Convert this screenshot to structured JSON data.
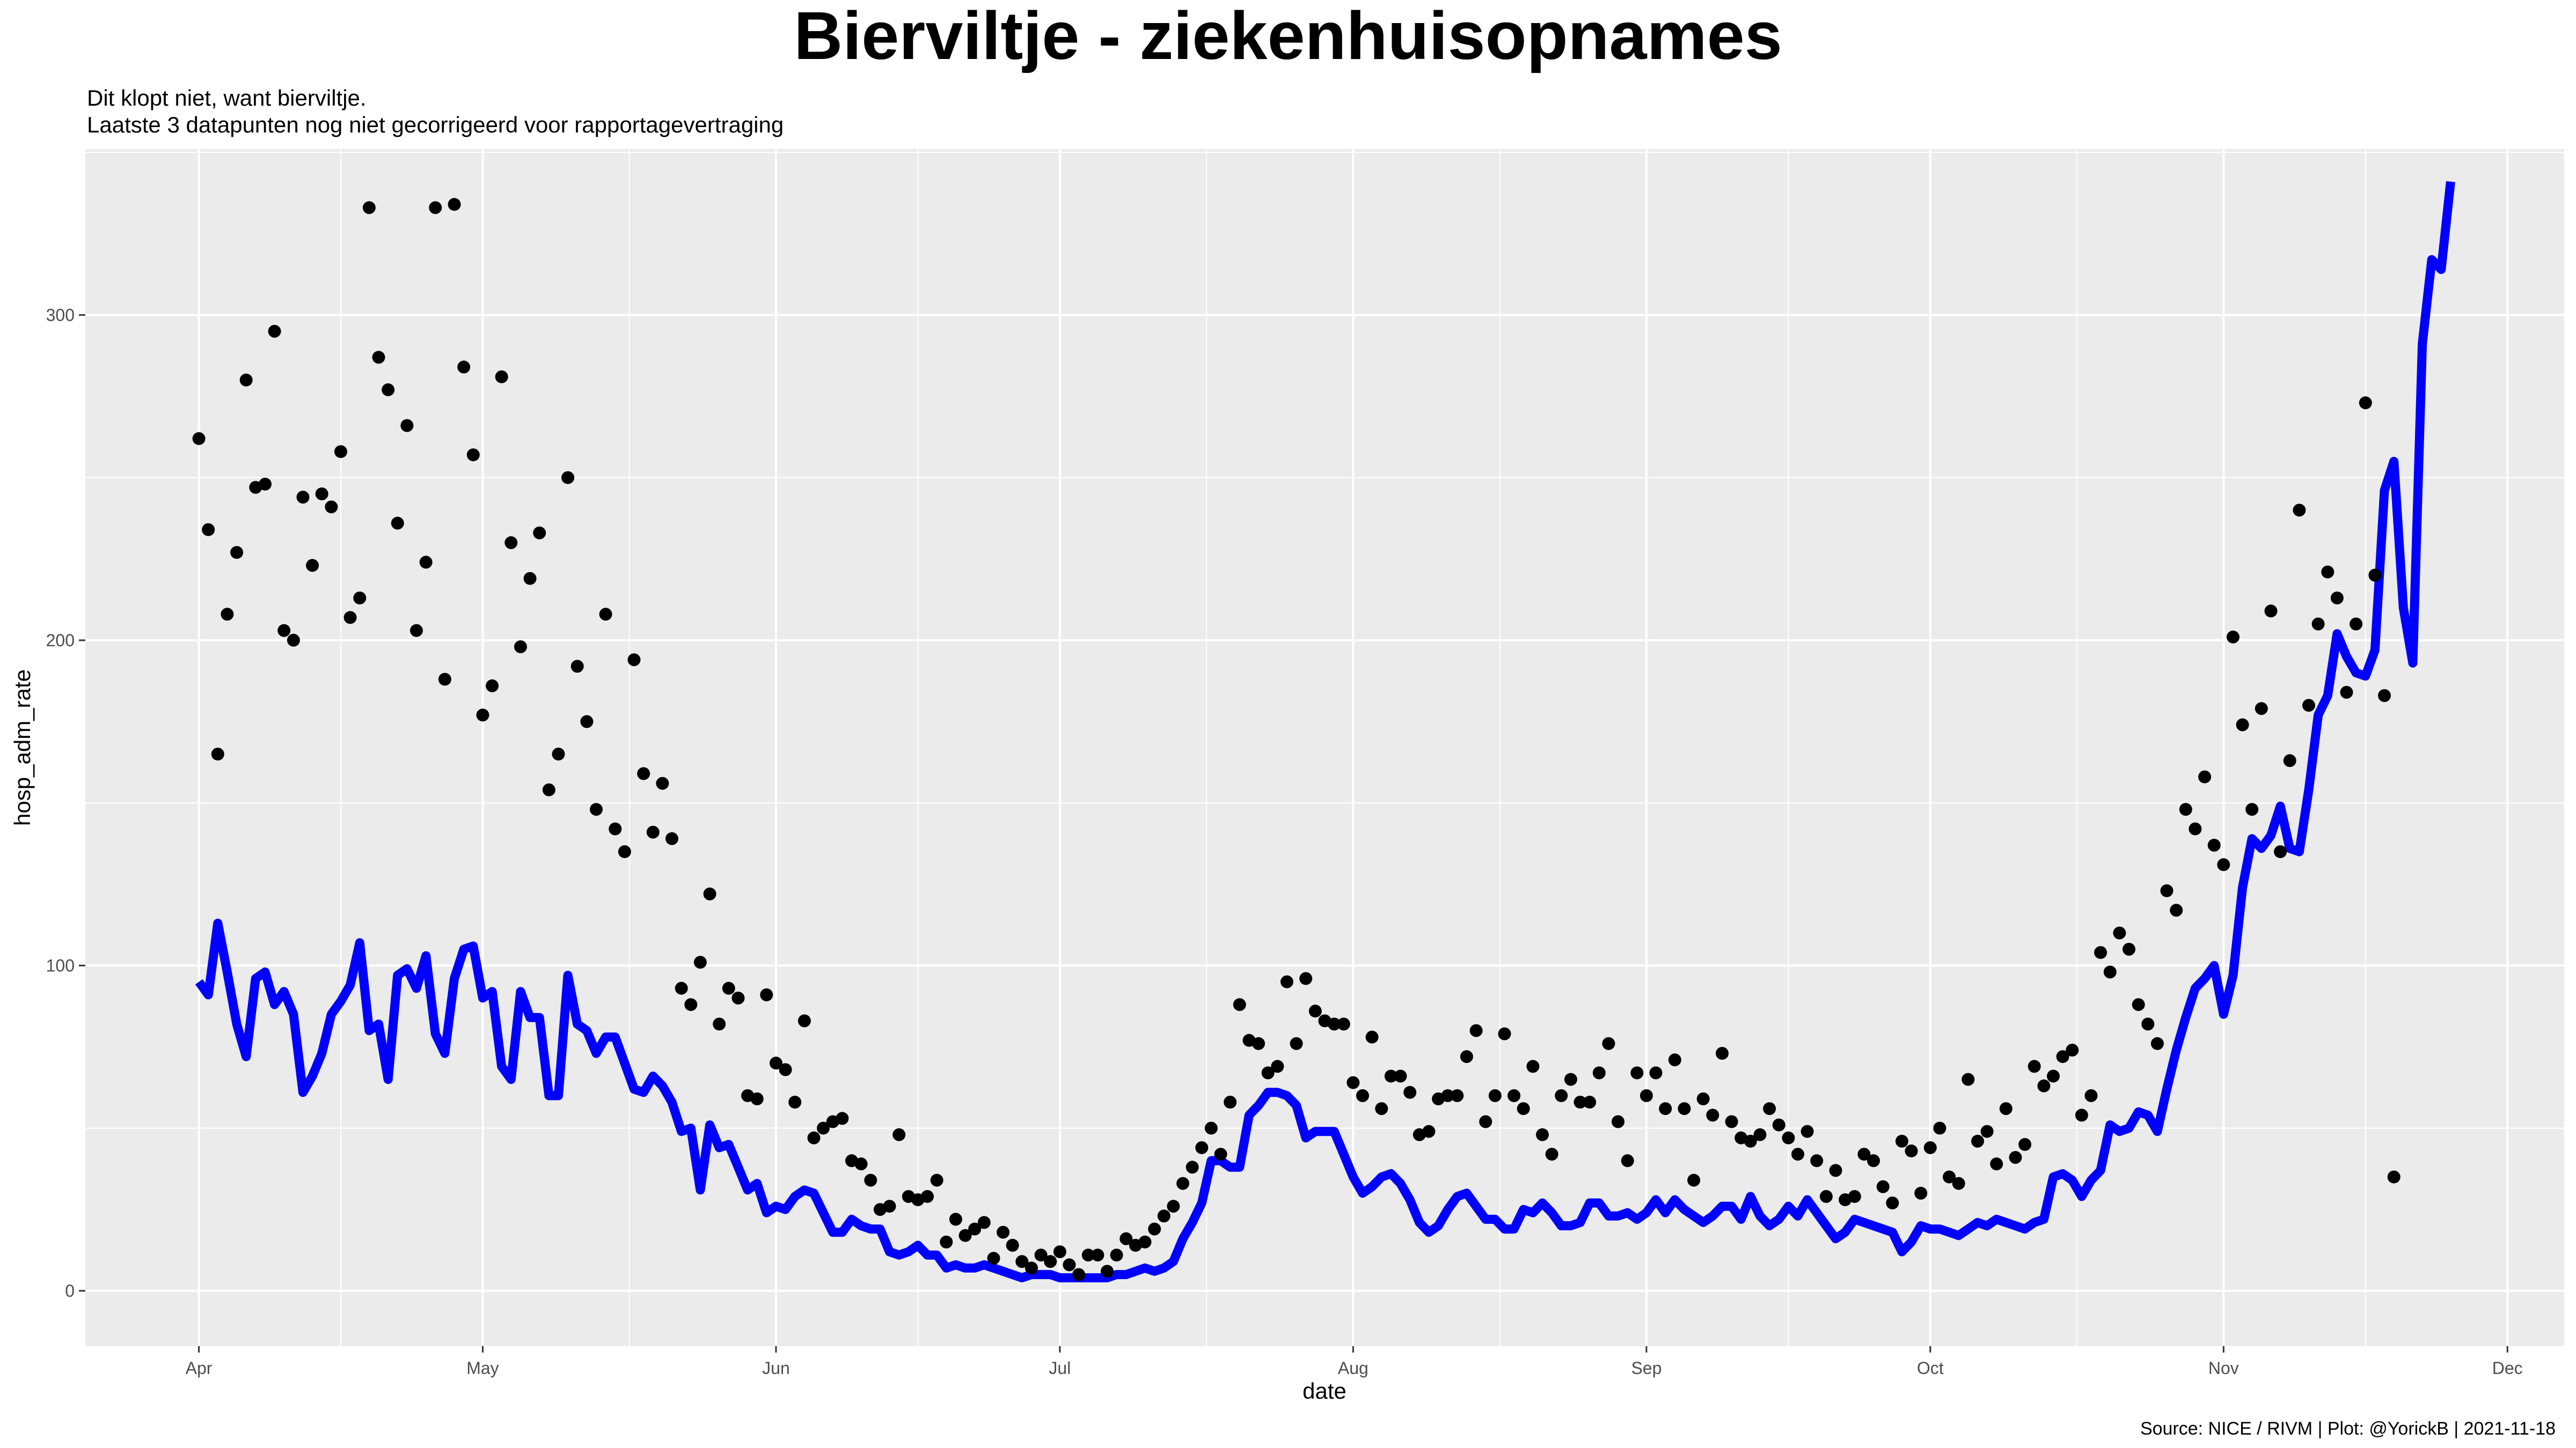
{
  "chart_data": {
    "type": "scatter",
    "title": "Bierviltje - ziekenhuisopnames",
    "subtitle_lines": [
      "Dit klopt niet, want bierviltje.",
      "Laatste 3 datapunten nog niet gecorrigeerd voor rapportagevertraging"
    ],
    "xlabel": "date",
    "ylabel": "hosp_adm_rate",
    "caption": "Source: NICE / RIVM | Plot: @YorickB |  2021-11-18",
    "x_range": [
      "2021-03-20",
      "2021-12-07"
    ],
    "ylim": [
      -17,
      351
    ],
    "x_ticks": [
      {
        "date": "2021-04-01",
        "label": "Apr"
      },
      {
        "date": "2021-05-01",
        "label": "May"
      },
      {
        "date": "2021-06-01",
        "label": "Jun"
      },
      {
        "date": "2021-07-01",
        "label": "Jul"
      },
      {
        "date": "2021-08-01",
        "label": "Aug"
      },
      {
        "date": "2021-09-01",
        "label": "Sep"
      },
      {
        "date": "2021-10-01",
        "label": "Oct"
      },
      {
        "date": "2021-11-01",
        "label": "Nov"
      },
      {
        "date": "2021-12-01",
        "label": "Dec"
      }
    ],
    "y_ticks": [
      0,
      100,
      200,
      300
    ],
    "grid": true,
    "panel_background": "#ebebeb",
    "grid_color": "#ffffff",
    "series": [
      {
        "kind": "points",
        "color": "#000000",
        "start_date": "2021-04-01",
        "values": [
          262,
          234,
          165,
          208,
          227,
          280,
          247,
          248,
          295,
          203,
          200,
          244,
          223,
          245,
          241,
          258,
          207,
          213,
          333,
          287,
          277,
          236,
          266,
          203,
          224,
          333,
          188,
          334,
          284,
          257,
          177,
          186,
          281,
          230,
          198,
          219,
          233,
          154,
          165,
          250,
          192,
          175,
          148,
          208,
          142,
          135,
          194,
          159,
          141,
          156,
          139,
          93,
          88,
          101,
          122,
          82,
          93,
          90,
          60,
          59,
          91,
          70,
          68,
          58,
          83,
          47,
          50,
          52,
          53,
          40,
          39,
          34,
          25,
          26,
          48,
          29,
          28,
          29,
          34,
          15,
          22,
          17,
          19,
          21,
          10,
          18,
          14,
          9,
          7,
          11,
          9,
          12,
          8,
          5,
          11,
          11,
          6,
          11,
          16,
          14,
          15,
          19,
          23,
          26,
          33,
          38,
          44,
          50,
          42,
          58,
          88,
          77,
          76,
          67,
          69,
          95,
          76,
          96,
          86,
          83,
          82,
          82,
          64,
          60,
          78,
          56,
          66,
          66,
          61,
          48,
          49,
          59,
          60,
          60,
          72,
          80,
          52,
          60,
          79,
          60,
          56,
          69,
          48,
          42,
          60,
          65,
          58,
          58,
          67,
          76,
          52,
          40,
          67,
          60,
          67,
          56,
          71,
          56,
          34,
          59,
          54,
          73,
          52,
          47,
          46,
          48,
          56,
          51,
          47,
          42,
          49,
          40,
          29,
          37,
          28,
          29,
          42,
          40,
          32,
          27,
          46,
          43,
          30,
          44,
          50,
          35,
          33,
          65,
          46,
          49,
          39,
          56,
          41,
          45,
          69,
          63,
          66,
          72,
          74,
          54,
          60,
          104,
          98,
          110,
          105,
          88,
          82,
          76,
          123,
          117,
          148,
          142,
          158,
          137,
          131,
          201,
          174,
          148,
          179,
          209,
          135,
          163,
          240,
          180,
          205,
          221,
          213,
          184,
          205,
          273,
          220,
          183,
          35
        ]
      },
      {
        "kind": "line",
        "color": "#0000ff",
        "start_date": "2021-04-01",
        "values": [
          95,
          91,
          113,
          98,
          82,
          72,
          96,
          98,
          88,
          92,
          85,
          61,
          66,
          73,
          85,
          89,
          94,
          107,
          80,
          82,
          65,
          97,
          99,
          93,
          103,
          79,
          73,
          96,
          105,
          106,
          90,
          92,
          69,
          65,
          92,
          84,
          84,
          60,
          60,
          97,
          82,
          80,
          73,
          78,
          78,
          70,
          62,
          61,
          66,
          63,
          58,
          49,
          50,
          31,
          51,
          44,
          45,
          38,
          31,
          33,
          24,
          26,
          25,
          29,
          31,
          30,
          24,
          18,
          18,
          22,
          20,
          19,
          19,
          12,
          11,
          12,
          14,
          11,
          11,
          7,
          8,
          7,
          7,
          8,
          7,
          6,
          5,
          4,
          5,
          5,
          5,
          4,
          4,
          4,
          4,
          4,
          4,
          5,
          5,
          6,
          7,
          6,
          7,
          9,
          16,
          21,
          27,
          40,
          40,
          38,
          38,
          54,
          57,
          61,
          61,
          60,
          57,
          47,
          49,
          49,
          49,
          42,
          35,
          30,
          32,
          35,
          36,
          33,
          28,
          21,
          18,
          20,
          25,
          29,
          30,
          26,
          22,
          22,
          19,
          19,
          25,
          24,
          27,
          24,
          20,
          20,
          21,
          27,
          27,
          23,
          23,
          24,
          22,
          24,
          28,
          24,
          28,
          25,
          23,
          21,
          23,
          26,
          26,
          22,
          29,
          23,
          20,
          22,
          26,
          23,
          28,
          24,
          20,
          16,
          18,
          22,
          21,
          20,
          19,
          18,
          12,
          15,
          20,
          19,
          19,
          18,
          17,
          19,
          21,
          20,
          22,
          21,
          20,
          19,
          21,
          22,
          35,
          36,
          34,
          29,
          34,
          37,
          51,
          49,
          50,
          55,
          54,
          49,
          62,
          74,
          84,
          93,
          96,
          100,
          85,
          97,
          124,
          139,
          136,
          140,
          149,
          136,
          135,
          154,
          177,
          183,
          202,
          195,
          190,
          189,
          197,
          246,
          255,
          210,
          193,
          291,
          317,
          314,
          341
        ]
      }
    ]
  }
}
